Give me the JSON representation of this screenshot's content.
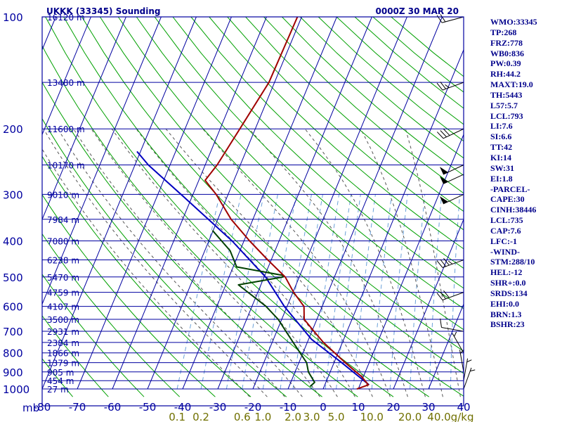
{
  "header": {
    "title": "UKKK (33345) Sounding",
    "valid_time": "0000Z 30 MAR 20"
  },
  "colors": {
    "frame": "#0000a0",
    "isobar": "#0000a0",
    "isotherm": "#0000a0",
    "dry_adiabat": "#00a000",
    "moist_adiabat": "#555555",
    "mixing_ratio": "#6aa0d8",
    "temperature": "#a00000",
    "dewpoint": "#004000",
    "parcel": "#0000c0",
    "mixing_ratio_labels": "#707000",
    "wind_barb": "#000000",
    "index_text": "#00008b"
  },
  "chart_data": {
    "type": "skew-t log-p sounding",
    "title": "UKKK (33345) Sounding",
    "time": "0000Z 30 MAR 20",
    "pressure_axis_label": "mb",
    "pressure_range": [
      1000,
      100
    ],
    "temperature_range": [
      -80,
      40
    ],
    "pressure_ticks": [
      100,
      200,
      300,
      400,
      500,
      600,
      700,
      800,
      900,
      1000
    ],
    "temperature_ticks": [
      -80,
      -70,
      -60,
      -50,
      -40,
      -30,
      -20,
      -10,
      0,
      10,
      20,
      30,
      40
    ],
    "mixing_ratio_labels": [
      {
        "w": 0.1,
        "text": "0.1"
      },
      {
        "w": 0.2,
        "text": "0.2"
      },
      {
        "w": 0.6,
        "text": "0.6"
      },
      {
        "w": 1.0,
        "text": "1.0"
      },
      {
        "w": 2.0,
        "text": "2.0"
      },
      {
        "w": 3.0,
        "text": "3.0"
      },
      {
        "w": 5.0,
        "text": "5.0"
      },
      {
        "w": 10.0,
        "text": "10.0"
      },
      {
        "w": 20.0,
        "text": "20.0"
      },
      {
        "w": 40.0,
        "text": "40.0"
      }
    ],
    "mixing_ratio_unit": "g/kg",
    "heights": [
      {
        "p": 100,
        "label": "16120 m"
      },
      {
        "p": 150,
        "label": "13480 m"
      },
      {
        "p": 200,
        "label": "11600 m"
      },
      {
        "p": 250,
        "label": "10170 m"
      },
      {
        "p": 300,
        "label": "9010 m"
      },
      {
        "p": 350,
        "label": "7984 m"
      },
      {
        "p": 400,
        "label": "7080 m"
      },
      {
        "p": 450,
        "label": "6238 m"
      },
      {
        "p": 500,
        "label": "5470 m"
      },
      {
        "p": 550,
        "label": "4759 m"
      },
      {
        "p": 600,
        "label": "4107 m"
      },
      {
        "p": 650,
        "label": "3500 m"
      },
      {
        "p": 700,
        "label": "2931 m"
      },
      {
        "p": 750,
        "label": "2384 m"
      },
      {
        "p": 800,
        "label": "1866 m"
      },
      {
        "p": 850,
        "label": "1379 m"
      },
      {
        "p": 900,
        "label": "905 m"
      },
      {
        "p": 950,
        "label": "454 m"
      },
      {
        "p": 1000,
        "label": "27 m"
      }
    ],
    "temperature_profile": [
      {
        "p": 1000,
        "t": 9.6
      },
      {
        "p": 975,
        "t": 12.4
      },
      {
        "p": 925,
        "t": 9.4
      },
      {
        "p": 850,
        "t": 3.2
      },
      {
        "p": 750,
        "t": -5.4
      },
      {
        "p": 700,
        "t": -9.4
      },
      {
        "p": 650,
        "t": -13.6
      },
      {
        "p": 600,
        "t": -15.2
      },
      {
        "p": 550,
        "t": -19.8
      },
      {
        "p": 500,
        "t": -24.0
      },
      {
        "p": 450,
        "t": -31.0
      },
      {
        "p": 400,
        "t": -38.4
      },
      {
        "p": 350,
        "t": -46.2
      },
      {
        "p": 300,
        "t": -53.4
      },
      {
        "p": 275,
        "t": -58.2
      },
      {
        "p": 250,
        "t": -56.6
      },
      {
        "p": 200,
        "t": -54.4
      },
      {
        "p": 150,
        "t": -51.6
      },
      {
        "p": 100,
        "t": -51.2
      }
    ],
    "dewpoint_profile": [
      {
        "p": 985,
        "t": -4.0
      },
      {
        "p": 960,
        "t": -3.2
      },
      {
        "p": 900,
        "t": -6.2
      },
      {
        "p": 850,
        "t": -7.8
      },
      {
        "p": 750,
        "t": -14.0
      },
      {
        "p": 700,
        "t": -17.4
      },
      {
        "p": 650,
        "t": -21.0
      },
      {
        "p": 600,
        "t": -26.0
      },
      {
        "p": 525,
        "t": -36.4
      },
      {
        "p": 500,
        "t": -24.6
      },
      {
        "p": 495,
        "t": -25.0
      },
      {
        "p": 470,
        "t": -39.0
      },
      {
        "p": 425,
        "t": -42.8
      },
      {
        "p": 375,
        "t": -50.2
      }
    ],
    "parcel_profile": [
      {
        "p": 975,
        "t": 12.6
      },
      {
        "p": 850,
        "t": 2.2
      },
      {
        "p": 735,
        "t": -9.2
      },
      {
        "p": 600,
        "t": -20.8
      },
      {
        "p": 500,
        "t": -29.6
      },
      {
        "p": 400,
        "t": -43.4
      },
      {
        "p": 300,
        "t": -63.4
      },
      {
        "p": 250,
        "t": -76.2
      },
      {
        "p": 230,
        "t": -81.0
      }
    ],
    "wind_barbs": [
      {
        "p": 100,
        "dir": 255,
        "kt": 20
      },
      {
        "p": 150,
        "dir": 250,
        "kt": 25
      },
      {
        "p": 200,
        "dir": 245,
        "kt": 30
      },
      {
        "p": 250,
        "dir": 245,
        "kt": 50
      },
      {
        "p": 265,
        "dir": 245,
        "kt": 50
      },
      {
        "p": 300,
        "dir": 245,
        "kt": 50
      },
      {
        "p": 450,
        "dir": 250,
        "kt": 35
      },
      {
        "p": 550,
        "dir": 250,
        "kt": 30
      },
      {
        "p": 700,
        "dir": 280,
        "kt": 10
      },
      {
        "p": 800,
        "dir": 330,
        "kt": 5
      },
      {
        "p": 900,
        "dir": 350,
        "kt": 5
      },
      {
        "p": 950,
        "dir": 10,
        "kt": 5
      },
      {
        "p": 1000,
        "dir": 20,
        "kt": 5
      }
    ]
  },
  "indices": [
    "WMO:33345",
    "TP:268",
    "FRZ:778",
    "WB0:836",
    "PW:0.39",
    "RH:44.2",
    "MAXT:19.0",
    "TH:5443",
    "L57:5.7",
    "LCL:793",
    "LI:7.6",
    "SI:6.6",
    "TT:42",
    "KI:14",
    "SW:31",
    "EI:1.8",
    "-PARCEL-",
    "CAPE:30",
    "CINH:38446",
    "LCL:735",
    "CAP:7.6",
    "LFC:-1",
    "-WIND-",
    "STM:288/10",
    "HEL:-12",
    "SHR+:0.0",
    "SRDS:134",
    "EHI:0.0",
    "BRN:1.3",
    "BSHR:23"
  ]
}
